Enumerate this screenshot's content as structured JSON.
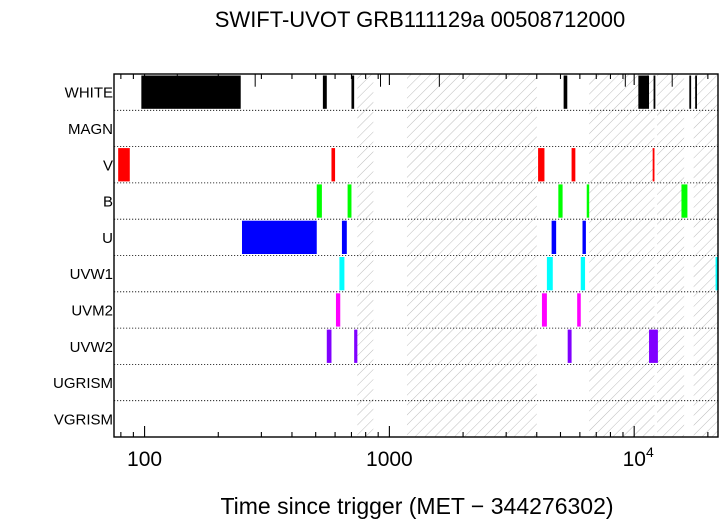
{
  "chart_data": {
    "type": "timeline",
    "title": "SWIFT-UVOT GRB111129a 00508712000",
    "xlabel": "Time since trigger (MET − 344276302)",
    "x_scale": "log",
    "xlim": [
      75,
      22000
    ],
    "tick_labels": [
      {
        "v": 100,
        "label": "100"
      },
      {
        "v": 1000,
        "label": "1000"
      },
      {
        "v": 10000,
        "base": "10",
        "exp": "4"
      }
    ],
    "filters": [
      {
        "name": "WHITE",
        "color": "#000000",
        "exposures": [
          [
            97,
            247
          ],
          [
            535,
            555
          ],
          [
            700,
            718
          ],
          [
            5150,
            5330
          ],
          [
            10400,
            11500
          ],
          [
            12000,
            12150
          ],
          [
            16800,
            16950
          ],
          [
            17750,
            17950
          ]
        ]
      },
      {
        "name": "MAGN",
        "color": "#000000",
        "exposures": []
      },
      {
        "name": "V",
        "color": "#ff0000",
        "exposures": [
          [
            78,
            87
          ],
          [
            580,
            600
          ],
          [
            4050,
            4300
          ],
          [
            5550,
            5750
          ],
          [
            11900,
            12020
          ]
        ]
      },
      {
        "name": "B",
        "color": "#00ff00",
        "exposures": [
          [
            505,
            530
          ],
          [
            675,
            700
          ],
          [
            4900,
            5100
          ],
          [
            6400,
            6550
          ],
          [
            15600,
            16500
          ]
        ]
      },
      {
        "name": "U",
        "color": "#0000ff",
        "exposures": [
          [
            250,
            505
          ],
          [
            640,
            670
          ],
          [
            4600,
            4800
          ],
          [
            6150,
            6350
          ]
        ]
      },
      {
        "name": "UVW1",
        "color": "#00ffff",
        "exposures": [
          [
            625,
            655
          ],
          [
            4400,
            4650
          ],
          [
            6050,
            6300
          ],
          [
            21500,
            22000
          ]
        ]
      },
      {
        "name": "UVM2",
        "color": "#ff00ff",
        "exposures": [
          [
            605,
            630
          ],
          [
            4200,
            4400
          ],
          [
            5850,
            6050
          ]
        ]
      },
      {
        "name": "UVW2",
        "color": "#8000ff",
        "exposures": [
          [
            555,
            580
          ],
          [
            718,
            740
          ],
          [
            5350,
            5550
          ],
          [
            11500,
            12500
          ]
        ]
      },
      {
        "name": "UGRISM",
        "color": "#000000",
        "exposures": []
      },
      {
        "name": "VGRISM",
        "color": "#000000",
        "exposures": []
      }
    ],
    "gaps": [
      [
        740,
        860
      ],
      [
        1180,
        4000
      ],
      [
        6550,
        12100
      ],
      [
        12400,
        16000
      ],
      [
        17500,
        22000
      ]
    ],
    "white_minor_ticks": [
      136,
      283,
      920,
      1600,
      9200,
      14300
    ],
    "grid": false
  }
}
